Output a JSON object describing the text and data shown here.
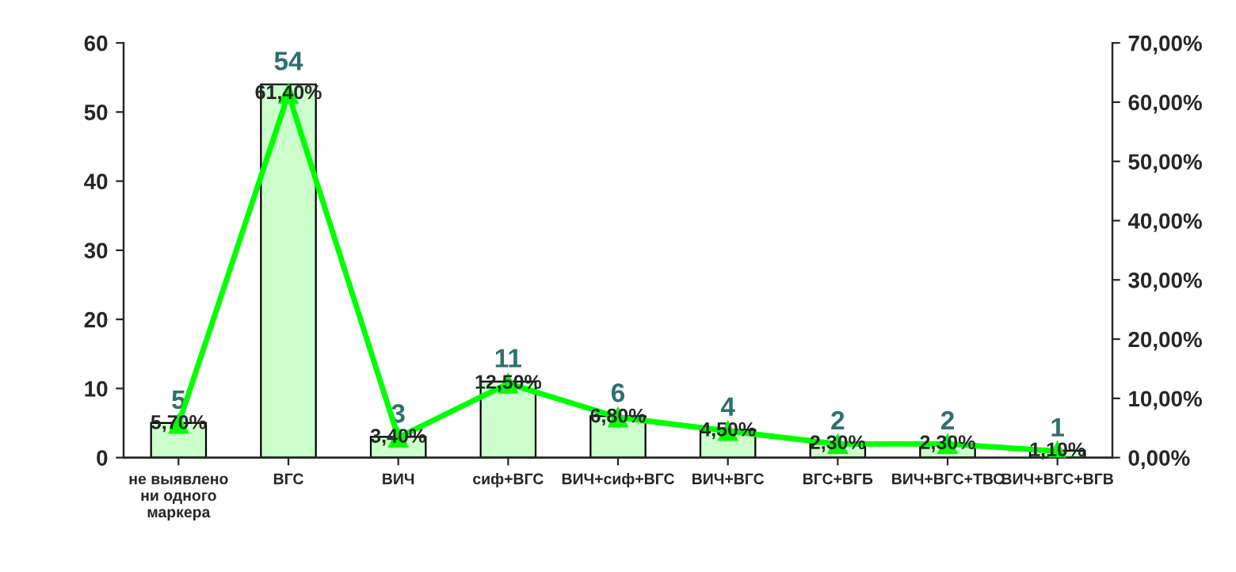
{
  "chart_data": {
    "type": "bar",
    "categories": [
      "не выявлено ни одного маркера",
      "ВГС",
      "ВИЧ",
      "сиф+ВГС",
      "ВИЧ+сиф+ВГС",
      "ВИЧ+ВГС",
      "ВГС+ВГБ",
      "ВИЧ+ВГС+ТВС",
      "ВИЧ+ВГС+ВГВ"
    ],
    "series": [
      {
        "color": "#ccffcc",
        "values": [
          5,
          54,
          3,
          11,
          6,
          4,
          2,
          2,
          1
        ],
        "data_labels": true
      },
      {
        "type": "line",
        "axis": "y2",
        "color": "#00ff00",
        "marker": "triangle",
        "line_style": "solid",
        "values": [
          5.7,
          61.4,
          3.4,
          12.5,
          6.8,
          4.5,
          2.3,
          2.3,
          1.1
        ],
        "value_labels": [
          "5,70%",
          "61,40%",
          "3,40%",
          "12,50%",
          "6,80%",
          "4,50%",
          "2,30%",
          "2,30%",
          "1,10%"
        ]
      }
    ],
    "ylim": [
      0,
      60
    ],
    "yticks": [
      0,
      10,
      20,
      30,
      40,
      50,
      60
    ],
    "y2lim": [
      0,
      70
    ],
    "y2ticks": [
      {
        "value": 0,
        "label": "0,00%"
      },
      {
        "value": 10,
        "label": "10,00%"
      },
      {
        "value": 20,
        "label": "20,00%"
      },
      {
        "value": 30,
        "label": "30,00%"
      },
      {
        "value": 40,
        "label": "40,00%"
      },
      {
        "value": 50,
        "label": "50,00%"
      },
      {
        "value": 60,
        "label": "60,00%"
      },
      {
        "value": 70,
        "label": "70,00%"
      }
    ],
    "grid": false,
    "legend": false
  }
}
